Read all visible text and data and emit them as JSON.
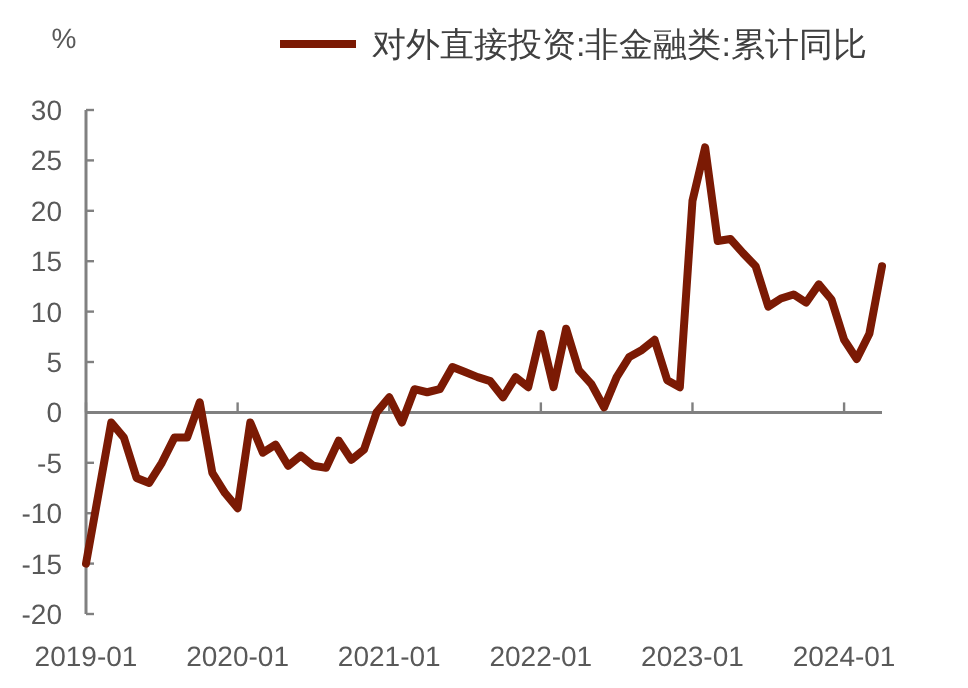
{
  "chart_data": {
    "type": "line",
    "ylabel": "%",
    "x": [
      "2019-01",
      "2019-02",
      "2019-03",
      "2019-04",
      "2019-05",
      "2019-06",
      "2019-07",
      "2019-08",
      "2019-09",
      "2019-10",
      "2019-11",
      "2019-12",
      "2020-01",
      "2020-02",
      "2020-03",
      "2020-04",
      "2020-05",
      "2020-06",
      "2020-07",
      "2020-08",
      "2020-09",
      "2020-10",
      "2020-11",
      "2020-12",
      "2021-01",
      "2021-02",
      "2021-03",
      "2021-04",
      "2021-05",
      "2021-06",
      "2021-07",
      "2021-08",
      "2021-09",
      "2021-10",
      "2021-11",
      "2021-12",
      "2022-01",
      "2022-02",
      "2022-03",
      "2022-04",
      "2022-05",
      "2022-06",
      "2022-07",
      "2022-08",
      "2022-09",
      "2022-10",
      "2022-11",
      "2022-12",
      "2023-01",
      "2023-02",
      "2023-03",
      "2023-04",
      "2023-05",
      "2023-06",
      "2023-07",
      "2023-08",
      "2023-09",
      "2023-10",
      "2023-11",
      "2023-12",
      "2024-01",
      "2024-02",
      "2024-03",
      "2024-04"
    ],
    "series": [
      {
        "name": "对外直接投资:非金融类:累计同比",
        "color": "#7b1a04",
        "values": [
          -15,
          -8,
          -1,
          -2.5,
          -6.5,
          -7,
          -5,
          -2.5,
          -2.5,
          1,
          -6,
          -8,
          -9.5,
          -1,
          -4,
          -3.2,
          -5.3,
          -4.3,
          -5.3,
          -5.5,
          -2.8,
          -4.7,
          -3.7,
          0,
          1.5,
          -1,
          2.3,
          2,
          2.3,
          4.5,
          4,
          3.5,
          3.1,
          1.5,
          3.5,
          2.5,
          7.8,
          2.5,
          8.3,
          4.2,
          2.8,
          0.5,
          3.5,
          5.5,
          6.2,
          7.2,
          3.2,
          2.5,
          21,
          26.3,
          17,
          17.2,
          15.8,
          14.5,
          10.5,
          11.3,
          11.7,
          10.9,
          12.7,
          11.2,
          7.2,
          5.3,
          7.8,
          14.5
        ]
      }
    ],
    "xlim": [
      "2019-01",
      "2024-04"
    ],
    "xticks": [
      "2019-01",
      "2020-01",
      "2021-01",
      "2022-01",
      "2023-01",
      "2024-01"
    ],
    "ylim": [
      -20,
      30
    ],
    "yticks": [
      -20,
      -15,
      -10,
      -5,
      0,
      5,
      10,
      15,
      20,
      25,
      30
    ],
    "legend": "top",
    "marker": "none",
    "line_style": "solid"
  }
}
